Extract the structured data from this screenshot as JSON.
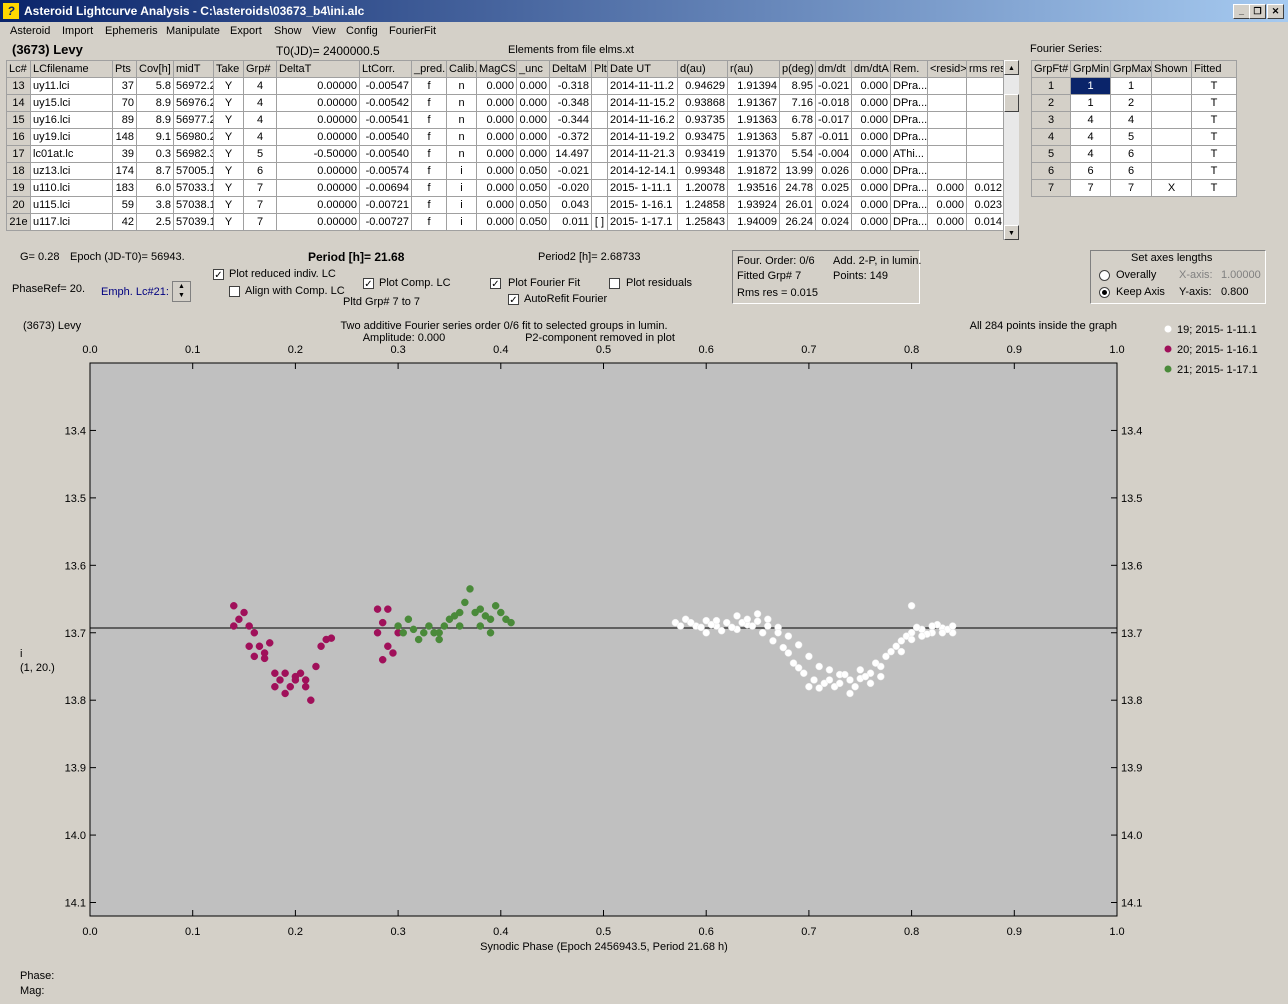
{
  "window": {
    "title": "Asteroid Lightcurve Analysis - C:\\asteroids\\03673_b4\\ini.alc",
    "icon": "app-icon"
  },
  "menu": [
    "Asteroid",
    "Import",
    "Ephemeris",
    "Manipulate",
    "Export",
    "Show",
    "View",
    "Config",
    "FourierFit"
  ],
  "header": {
    "name": "(3673) Levy",
    "t0": "T0(JD)= 2400000.5",
    "elements": "Elements from file elms.xt",
    "fourier_label": "Fourier Series:"
  },
  "lc_table": {
    "columns": [
      "Lc#",
      "LCfilename",
      "Pts",
      "Cov[h]",
      "midT",
      "Take",
      "Grp#",
      "DeltaT",
      "LtCorr.",
      "_pred.",
      "Calib.",
      "MagCS",
      "_unc",
      "DeltaM",
      "Plt",
      "Date UT",
      "d(au)",
      "r(au)",
      "p(deg)",
      "dm/dt",
      "dm/dtA",
      "Rem.",
      "<resid>",
      "rms res"
    ],
    "rows": [
      [
        "13",
        "uy11.lci",
        "37",
        "5.8",
        "56972.2",
        "Y",
        "4",
        "0.00000",
        "-0.00547",
        "f",
        "n",
        "0.000",
        "0.000",
        "-0.318",
        "",
        "2014-11-11.2",
        "0.94629",
        "1.91394",
        "8.95",
        "-0.021",
        "0.000",
        "DPra...",
        "",
        ""
      ],
      [
        "14",
        "uy15.lci",
        "70",
        "8.9",
        "56976.2",
        "Y",
        "4",
        "0.00000",
        "-0.00542",
        "f",
        "n",
        "0.000",
        "0.000",
        "-0.348",
        "",
        "2014-11-15.2",
        "0.93868",
        "1.91367",
        "7.16",
        "-0.018",
        "0.000",
        "DPra...",
        "",
        ""
      ],
      [
        "15",
        "uy16.lci",
        "89",
        "8.9",
        "56977.2",
        "Y",
        "4",
        "0.00000",
        "-0.00541",
        "f",
        "n",
        "0.000",
        "0.000",
        "-0.344",
        "",
        "2014-11-16.2",
        "0.93735",
        "1.91363",
        "6.78",
        "-0.017",
        "0.000",
        "DPra...",
        "",
        ""
      ],
      [
        "16",
        "uy19.lci",
        "148",
        "9.1",
        "56980.2",
        "Y",
        "4",
        "0.00000",
        "-0.00540",
        "f",
        "n",
        "0.000",
        "0.000",
        "-0.372",
        "",
        "2014-11-19.2",
        "0.93475",
        "1.91363",
        "5.87",
        "-0.011",
        "0.000",
        "DPra...",
        "",
        ""
      ],
      [
        "17",
        "lc01at.lc",
        "39",
        "0.3",
        "56982.3",
        "Y",
        "5",
        "-0.50000",
        "-0.00540",
        "f",
        "n",
        "0.000",
        "0.000",
        "14.497",
        "",
        "2014-11-21.3",
        "0.93419",
        "1.91370",
        "5.54",
        "-0.004",
        "0.000",
        "AThi...",
        "",
        ""
      ],
      [
        "18",
        "uz13.lci",
        "174",
        "8.7",
        "57005.1",
        "Y",
        "6",
        "0.00000",
        "-0.00574",
        "f",
        "i",
        "0.000",
        "0.050",
        "-0.021",
        "",
        "2014-12-14.1",
        "0.99348",
        "1.91872",
        "13.99",
        "0.026",
        "0.000",
        "DPra...",
        "",
        ""
      ],
      [
        "19",
        "u110.lci",
        "183",
        "6.0",
        "57033.1",
        "Y",
        "7",
        "0.00000",
        "-0.00694",
        "f",
        "i",
        "0.000",
        "0.050",
        "-0.020",
        "",
        "2015- 1-11.1",
        "1.20078",
        "1.93516",
        "24.78",
        "0.025",
        "0.000",
        "DPra...",
        "0.000",
        "0.012"
      ],
      [
        "20",
        "u115.lci",
        "59",
        "3.8",
        "57038.1",
        "Y",
        "7",
        "0.00000",
        "-0.00721",
        "f",
        "i",
        "0.000",
        "0.050",
        "0.043",
        "",
        "2015- 1-16.1",
        "1.24858",
        "1.93924",
        "26.01",
        "0.024",
        "0.000",
        "DPra...",
        "0.000",
        "0.023"
      ],
      [
        "21e",
        "u117.lci",
        "42",
        "2.5",
        "57039.1",
        "Y",
        "7",
        "0.00000",
        "-0.00727",
        "f",
        "i",
        "0.000",
        "0.050",
        "0.011",
        "[ ]",
        "2015- 1-17.1",
        "1.25843",
        "1.94009",
        "26.24",
        "0.024",
        "0.000",
        "DPra...",
        "0.000",
        "0.014"
      ]
    ]
  },
  "fourier_table": {
    "columns": [
      "GrpFt#",
      "GrpMin",
      "GrpMax",
      "Shown",
      "Fitted"
    ],
    "rows": [
      [
        "1",
        "1",
        "1",
        "",
        "T"
      ],
      [
        "2",
        "1",
        "2",
        "",
        "T"
      ],
      [
        "3",
        "4",
        "4",
        "",
        "T"
      ],
      [
        "4",
        "4",
        "5",
        "",
        "T"
      ],
      [
        "5",
        "4",
        "6",
        "",
        "T"
      ],
      [
        "6",
        "6",
        "6",
        "",
        "T"
      ],
      [
        "7",
        "7",
        "7",
        "X",
        "T"
      ]
    ]
  },
  "params": {
    "g": "G= 0.28",
    "epoch": "Epoch (JD-T0)= 56943.",
    "period": "Period [h]= 21.68",
    "period2": "Period2 [h]= 2.68733",
    "phaseref": "PhaseRef= 20.",
    "emph": "Emph. Lc#21:",
    "cb_reduced": "Plot reduced indiv. LC",
    "cb_align": "Align with Comp. LC",
    "cb_comp": "Plot Comp. LC",
    "pltd": "Pltd Grp#  7  to  7",
    "cb_fourier": "Plot Fourier Fit",
    "cb_autorefit": "AutoRefit Fourier",
    "cb_resid": "Plot residuals",
    "info1": "Four. Order:  0/6",
    "info2": "Add. 2-P, in lumin.",
    "info3": "Fitted Grp# 7",
    "info4": "Points: 149",
    "info5": "Rms res     = 0.015",
    "axes_title": "Set axes lengths",
    "overally": "Overally",
    "keepaxis": "Keep Axis",
    "xaxis": "X-axis:",
    "xval": "1.00000",
    "yaxis": "Y-axis:",
    "yval": "0.800"
  },
  "chart_data": {
    "type": "scatter",
    "title_left": "(3673) Levy",
    "title_center1": "Two additive Fourier series order 0/6 fit to selected groups in lumin.",
    "title_center2a": "Amplitude: 0.000",
    "title_center2b": "P2-component removed in plot",
    "title_right": "All 284 points inside the graph",
    "xlabel": "Synodic Phase (Epoch 2456943.5, Period 21.68 h)",
    "ylabel": "i",
    "ylabel2": "(1, 20.)",
    "xlim": [
      0.0,
      1.0
    ],
    "ylim": [
      13.3,
      14.12
    ],
    "xticks": [
      "0.0",
      "0.1",
      "0.2",
      "0.3",
      "0.4",
      "0.5",
      "0.6",
      "0.7",
      "0.8",
      "0.9",
      "1.0"
    ],
    "yticks": [
      "13.4",
      "13.5",
      "13.6",
      "13.7",
      "13.8",
      "13.9",
      "14.0",
      "14.1"
    ],
    "fit_line": 13.693,
    "colors": {
      "s19": "#ffffff",
      "s20": "#a0105a",
      "s21": "#4a8a3a"
    },
    "series": [
      {
        "name": "19; 2015- 1-11.1",
        "color": "#ffffff",
        "points": [
          [
            0.57,
            13.685
          ],
          [
            0.58,
            13.68
          ],
          [
            0.59,
            13.69
          ],
          [
            0.6,
            13.682
          ],
          [
            0.61,
            13.69
          ],
          [
            0.62,
            13.685
          ],
          [
            0.63,
            13.695
          ],
          [
            0.64,
            13.688
          ],
          [
            0.65,
            13.683
          ],
          [
            0.66,
            13.68
          ],
          [
            0.67,
            13.692
          ],
          [
            0.68,
            13.705
          ],
          [
            0.69,
            13.718
          ],
          [
            0.7,
            13.735
          ],
          [
            0.71,
            13.75
          ],
          [
            0.72,
            13.755
          ],
          [
            0.73,
            13.762
          ],
          [
            0.74,
            13.77
          ],
          [
            0.75,
            13.768
          ],
          [
            0.76,
            13.76
          ],
          [
            0.77,
            13.75
          ],
          [
            0.78,
            13.728
          ],
          [
            0.79,
            13.712
          ],
          [
            0.8,
            13.7
          ],
          [
            0.81,
            13.695
          ],
          [
            0.82,
            13.7
          ],
          [
            0.83,
            13.693
          ],
          [
            0.84,
            13.7
          ],
          [
            0.575,
            13.69
          ],
          [
            0.585,
            13.685
          ],
          [
            0.595,
            13.692
          ],
          [
            0.605,
            13.688
          ],
          [
            0.615,
            13.697
          ],
          [
            0.625,
            13.692
          ],
          [
            0.635,
            13.685
          ],
          [
            0.645,
            13.69
          ],
          [
            0.655,
            13.7
          ],
          [
            0.665,
            13.712
          ],
          [
            0.675,
            13.722
          ],
          [
            0.685,
            13.745
          ],
          [
            0.695,
            13.76
          ],
          [
            0.705,
            13.77
          ],
          [
            0.715,
            13.775
          ],
          [
            0.725,
            13.78
          ],
          [
            0.735,
            13.762
          ],
          [
            0.745,
            13.78
          ],
          [
            0.755,
            13.765
          ],
          [
            0.765,
            13.745
          ],
          [
            0.775,
            13.735
          ],
          [
            0.785,
            13.72
          ],
          [
            0.795,
            13.705
          ],
          [
            0.805,
            13.692
          ],
          [
            0.815,
            13.702
          ],
          [
            0.825,
            13.688
          ],
          [
            0.835,
            13.695
          ],
          [
            0.7,
            13.78
          ],
          [
            0.72,
            13.77
          ],
          [
            0.74,
            13.79
          ],
          [
            0.76,
            13.775
          ],
          [
            0.68,
            13.73
          ],
          [
            0.69,
            13.752
          ],
          [
            0.71,
            13.782
          ],
          [
            0.73,
            13.775
          ],
          [
            0.75,
            13.755
          ],
          [
            0.77,
            13.765
          ],
          [
            0.79,
            13.728
          ],
          [
            0.8,
            13.71
          ],
          [
            0.81,
            13.705
          ],
          [
            0.82,
            13.69
          ],
          [
            0.83,
            13.7
          ],
          [
            0.84,
            13.69
          ],
          [
            0.63,
            13.675
          ],
          [
            0.64,
            13.68
          ],
          [
            0.65,
            13.672
          ],
          [
            0.66,
            13.69
          ],
          [
            0.67,
            13.7
          ],
          [
            0.8,
            13.66
          ],
          [
            0.6,
            13.7
          ],
          [
            0.61,
            13.682
          ]
        ]
      },
      {
        "name": "20; 2015- 1-16.1",
        "color": "#a0105a",
        "points": [
          [
            0.14,
            13.66
          ],
          [
            0.145,
            13.68
          ],
          [
            0.15,
            13.67
          ],
          [
            0.155,
            13.69
          ],
          [
            0.16,
            13.7
          ],
          [
            0.165,
            13.72
          ],
          [
            0.17,
            13.73
          ],
          [
            0.175,
            13.715
          ],
          [
            0.18,
            13.76
          ],
          [
            0.185,
            13.77
          ],
          [
            0.19,
            13.76
          ],
          [
            0.195,
            13.78
          ],
          [
            0.2,
            13.77
          ],
          [
            0.205,
            13.76
          ],
          [
            0.21,
            13.78
          ],
          [
            0.215,
            13.8
          ],
          [
            0.22,
            13.75
          ],
          [
            0.225,
            13.72
          ],
          [
            0.23,
            13.71
          ],
          [
            0.235,
            13.708
          ],
          [
            0.155,
            13.72
          ],
          [
            0.16,
            13.735
          ],
          [
            0.17,
            13.738
          ],
          [
            0.18,
            13.78
          ],
          [
            0.19,
            13.79
          ],
          [
            0.2,
            13.765
          ],
          [
            0.21,
            13.77
          ],
          [
            0.14,
            13.69
          ],
          [
            0.28,
            13.665
          ],
          [
            0.285,
            13.685
          ],
          [
            0.29,
            13.665
          ],
          [
            0.29,
            13.72
          ],
          [
            0.285,
            13.74
          ],
          [
            0.3,
            13.7
          ],
          [
            0.295,
            13.73
          ],
          [
            0.28,
            13.7
          ]
        ]
      },
      {
        "name": "21; 2015- 1-17.1",
        "color": "#4a8a3a",
        "points": [
          [
            0.3,
            13.69
          ],
          [
            0.305,
            13.7
          ],
          [
            0.31,
            13.68
          ],
          [
            0.315,
            13.695
          ],
          [
            0.32,
            13.71
          ],
          [
            0.325,
            13.7
          ],
          [
            0.33,
            13.69
          ],
          [
            0.335,
            13.7
          ],
          [
            0.34,
            13.71
          ],
          [
            0.345,
            13.69
          ],
          [
            0.35,
            13.68
          ],
          [
            0.355,
            13.675
          ],
          [
            0.36,
            13.67
          ],
          [
            0.365,
            13.655
          ],
          [
            0.37,
            13.635
          ],
          [
            0.375,
            13.67
          ],
          [
            0.38,
            13.69
          ],
          [
            0.385,
            13.675
          ],
          [
            0.39,
            13.7
          ],
          [
            0.395,
            13.66
          ],
          [
            0.4,
            13.67
          ],
          [
            0.405,
            13.68
          ],
          [
            0.41,
            13.685
          ],
          [
            0.39,
            13.68
          ],
          [
            0.38,
            13.665
          ],
          [
            0.36,
            13.69
          ],
          [
            0.34,
            13.7
          ]
        ]
      }
    ]
  },
  "status": {
    "phase": "Phase:",
    "mag": "Mag:"
  }
}
